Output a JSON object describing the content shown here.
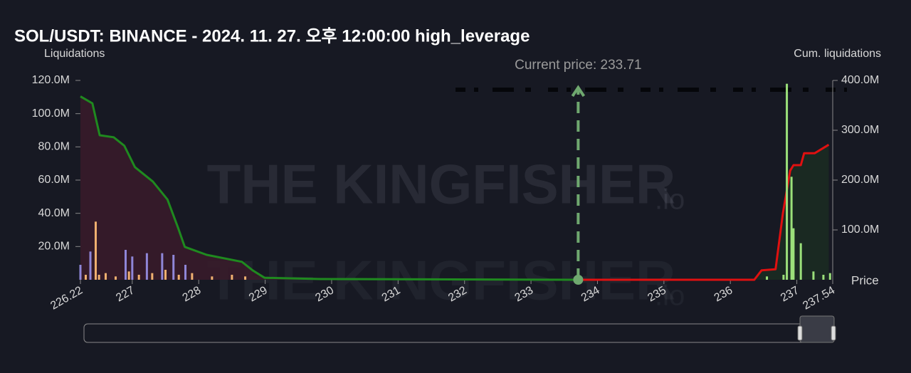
{
  "chart_data": {
    "type": "combo",
    "title": "SOL/USDT: BINANCE - 2024. 11. 27. 오후 12:00:00 high_leverage",
    "y_label": "Liquidations",
    "y2_label": "Cum. liquidations",
    "x_label": "Price",
    "watermark": "THE KINGFISHER",
    "watermark_suffix": ".io",
    "annotation": {
      "text": "Current price: 233.71",
      "x": 233.71
    },
    "xlim": [
      226.22,
      237.54
    ],
    "xticks": [
      226.22,
      227,
      228,
      229,
      230,
      231,
      232,
      233,
      234,
      235,
      236,
      237,
      237.54
    ],
    "ylim": [
      0,
      120000000
    ],
    "yticks": [
      {
        "value": 20000000,
        "label": "20.0M"
      },
      {
        "value": 40000000,
        "label": "40.0M"
      },
      {
        "value": 60000000,
        "label": "60.0M"
      },
      {
        "value": 80000000,
        "label": "80.0M"
      },
      {
        "value": 100000000,
        "label": "100.0M"
      },
      {
        "value": 120000000,
        "label": "120.0M"
      }
    ],
    "y2lim": [
      0,
      400000000
    ],
    "y2ticks": [
      {
        "value": 100000000,
        "label": "100.0M"
      },
      {
        "value": 200000000,
        "label": "200.0M"
      },
      {
        "value": 300000000,
        "label": "300.0M"
      },
      {
        "value": 400000000,
        "label": "400.0M"
      }
    ],
    "grid": false,
    "series": [
      {
        "type": "bar",
        "color": "#8f86d8",
        "x": [
          226.22,
          226.37,
          226.9,
          227.0,
          227.22,
          227.45,
          227.62,
          227.8
        ],
        "values": [
          9000000,
          17000000,
          18000000,
          14000000,
          16000000,
          16000000,
          15000000,
          9000000
        ]
      },
      {
        "type": "bar",
        "color": "#f0b070",
        "x": [
          226.3,
          226.45,
          226.5,
          226.6,
          226.75,
          226.95,
          227.1,
          227.3,
          227.5,
          227.7,
          227.9,
          228.2,
          228.5,
          228.7
        ],
        "values": [
          3000000,
          35000000,
          3000000,
          4000000,
          2000000,
          5000000,
          3000000,
          4000000,
          6000000,
          3000000,
          4000000,
          2000000,
          3000000,
          2000000
        ]
      },
      {
        "type": "bar",
        "color": "#9be07a",
        "x": [
          236.55,
          236.8,
          236.85,
          236.92,
          236.95,
          237.06,
          237.25,
          237.4,
          237.5
        ],
        "values": [
          2000000,
          3000000,
          118000000,
          62000000,
          31000000,
          22000000,
          5000000,
          3000000,
          4000000
        ]
      },
      {
        "type": "line",
        "axis": "y2",
        "color": "#1f8a1f",
        "area_color": "#3a1b2a",
        "x": [
          226.22,
          226.4,
          226.51,
          226.72,
          226.88,
          227.04,
          227.31,
          227.53,
          227.69,
          227.79,
          228.12,
          228.65,
          228.81,
          228.99,
          229.83,
          233.71
        ],
        "values": [
          368000000,
          354000000,
          290000000,
          286000000,
          269000000,
          226000000,
          197000000,
          161000000,
          104000000,
          66000000,
          50000000,
          36000000,
          19000000,
          4000000,
          1400000,
          0
        ]
      },
      {
        "type": "line",
        "axis": "y2",
        "color": "#e01010",
        "area_color": "#1b2d22",
        "x": [
          233.71,
          236.36,
          236.47,
          236.68,
          236.79,
          236.9,
          236.95,
          237.06,
          237.11,
          237.27,
          237.48
        ],
        "values": [
          0,
          0,
          19000000,
          21000000,
          133000000,
          219000000,
          230000000,
          230000000,
          254000000,
          254000000,
          271000000
        ]
      }
    ]
  }
}
